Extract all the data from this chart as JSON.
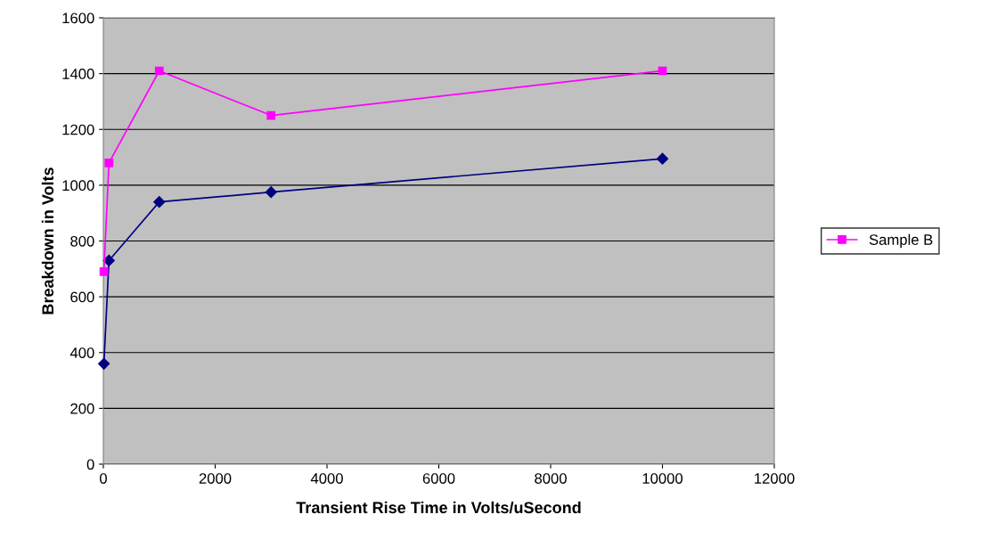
{
  "chart_data": {
    "type": "line",
    "xlabel": "Transient Rise Time in Volts/uSecond",
    "ylabel": "Breakdown in Volts",
    "x": [
      10,
      100,
      1000,
      3000,
      10000
    ],
    "series": [
      {
        "color": "#000080",
        "marker": "diamond",
        "values": [
          360,
          730,
          940,
          975,
          1095
        ]
      },
      {
        "name": "Sample B",
        "color": "#ff00ff",
        "marker": "square",
        "values": [
          690,
          1080,
          1410,
          1250,
          1410
        ]
      }
    ],
    "xlim": [
      0,
      12000
    ],
    "xticks": [
      0,
      2000,
      4000,
      6000,
      8000,
      10000,
      12000
    ],
    "ylim": [
      0,
      1600
    ],
    "yticks": [
      0,
      200,
      400,
      600,
      800,
      1000,
      1200,
      1400,
      1600
    ],
    "grid": "y",
    "legend": "right",
    "line_style": "solid"
  }
}
